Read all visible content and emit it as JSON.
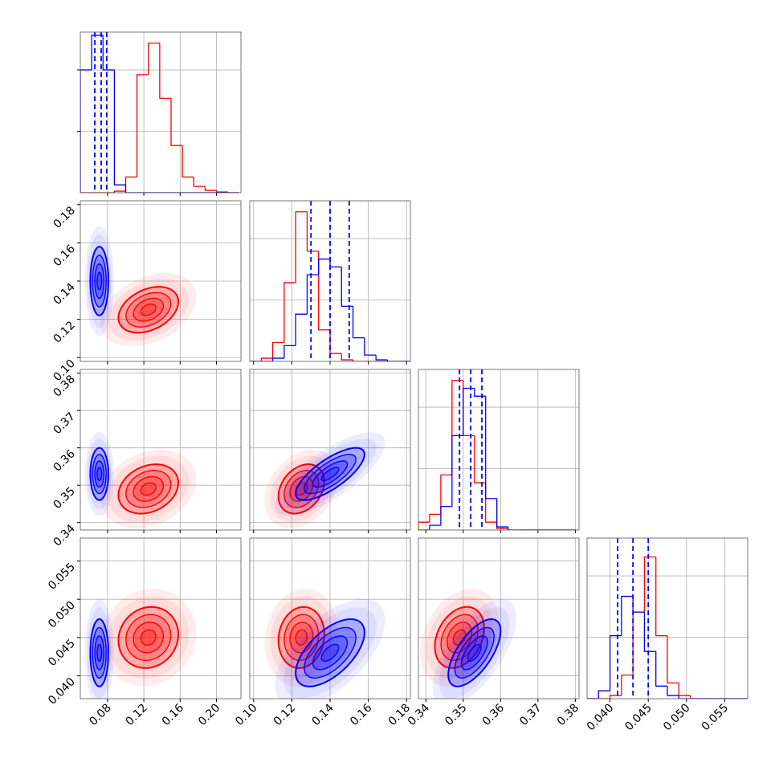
{
  "chart_data": {
    "type": "corner",
    "contour_levels": [
      0.5,
      1,
      1.5,
      2
    ],
    "hist_ylim": [
      0,
      1.02
    ],
    "hist_yticks": [
      0.39,
      0.78
    ],
    "grid": true,
    "parameters": [
      {
        "xlim": [
          0.05,
          0.227
        ],
        "ticks": [
          0.08,
          0.12,
          0.16,
          {
            "value": 0.2,
            "label": "0.20"
          }
        ],
        "bins": [
          0.05,
          0.0625,
          0.075,
          0.0875,
          0.1,
          0.1125,
          0.125,
          0.1375,
          0.15,
          0.1625,
          0.175,
          0.1875,
          0.2,
          0.2125,
          0.225
        ]
      },
      {
        "xlim": [
          0.098,
          0.182
        ],
        "ticks": [
          {
            "value": 0.1,
            "label": "0.10"
          },
          0.12,
          0.14,
          0.16,
          0.18
        ],
        "bins": [
          0.098,
          0.104,
          0.11,
          0.116,
          0.122,
          0.128,
          0.134,
          0.14,
          0.146,
          0.152,
          0.158,
          0.164,
          0.17,
          0.176,
          0.182
        ]
      },
      {
        "xlim": [
          0.338,
          0.381
        ],
        "ticks": [
          0.34,
          0.35,
          0.36,
          0.37,
          0.38
        ],
        "bins": [
          0.338,
          0.341,
          0.344,
          0.347,
          0.35,
          0.353,
          0.356,
          0.359,
          0.362,
          0.365,
          0.368,
          0.371,
          0.374,
          0.377,
          0.38
        ]
      },
      {
        "xlim": [
          0.037,
          0.058
        ],
        "ticks": [
          {
            "value": 0.04,
            "label": "0.040"
          },
          0.045,
          {
            "value": 0.05,
            "label": "0.050"
          },
          0.055
        ],
        "bins": [
          0.037,
          0.0385,
          0.04,
          0.0415,
          0.043,
          0.0445,
          0.046,
          0.0475,
          0.049,
          0.0505,
          0.052,
          0.0535,
          0.055,
          0.0565,
          0.058
        ]
      }
    ],
    "series": [
      {
        "color": "#ff0000",
        "means": [
          0.125,
          0.125,
          0.349,
          0.045
        ],
        "sigmas": [
          0.0165,
          0.006,
          0.0033,
          0.002
        ],
        "correlations": [
          [
            1,
            0.35,
            0.25,
            0.1
          ],
          [
            0.35,
            1,
            0.3,
            0.1
          ],
          [
            0.25,
            0.3,
            1,
            0.3
          ],
          [
            0.1,
            0.1,
            0.3,
            1
          ]
        ],
        "counts": [
          [
            0,
            0,
            0,
            0.01,
            0.1,
            0.75,
            0.95,
            0.6,
            0.3,
            0.1,
            0.04,
            0.015,
            0.005,
            0
          ],
          [
            0,
            0.02,
            0.12,
            0.5,
            0.95,
            0.7,
            0.2,
            0.05,
            0.01,
            0,
            0,
            0,
            0,
            0
          ],
          [
            0.05,
            0.1,
            0.35,
            0.95,
            0.6,
            0.3,
            0.05,
            0.01,
            0,
            0,
            0,
            0,
            0,
            0
          ],
          [
            0,
            0,
            0.02,
            0.15,
            0.55,
            0.9,
            0.4,
            0.1,
            0.02,
            0,
            0,
            0,
            0,
            0
          ]
        ]
      },
      {
        "color": "#0000ff",
        "means": [
          0.071,
          0.14,
          0.353,
          0.043
        ],
        "sigmas": [
          0.005,
          0.009,
          0.0035,
          0.0022
        ],
        "correlations": [
          [
            1,
            0,
            0,
            0
          ],
          [
            0,
            1,
            0.75,
            0.6
          ],
          [
            0,
            0.75,
            1,
            0.65
          ],
          [
            0,
            0.6,
            0.65,
            1
          ]
        ],
        "counts": [
          [
            0.78,
            1.0,
            0.78,
            0.05,
            0,
            0,
            0,
            0,
            0,
            0,
            0,
            0,
            0,
            0
          ],
          [
            0,
            0,
            0.02,
            0.1,
            0.3,
            0.55,
            0.65,
            0.6,
            0.35,
            0.15,
            0.04,
            0.01,
            0,
            0
          ],
          [
            0,
            0.03,
            0.15,
            0.6,
            0.9,
            0.85,
            0.2,
            0.02,
            0,
            0,
            0,
            0,
            0,
            0
          ],
          [
            0,
            0.05,
            0.4,
            0.65,
            0.55,
            0.3,
            0.08,
            0.02,
            0,
            0,
            0,
            0,
            0,
            0
          ]
        ],
        "quantiles": [
          [
            0.066,
            0.073,
            0.079
          ],
          [
            0.13,
            0.14,
            0.15
          ],
          [
            0.349,
            0.352,
            0.355
          ],
          [
            0.041,
            0.043,
            0.045
          ]
        ]
      }
    ]
  }
}
